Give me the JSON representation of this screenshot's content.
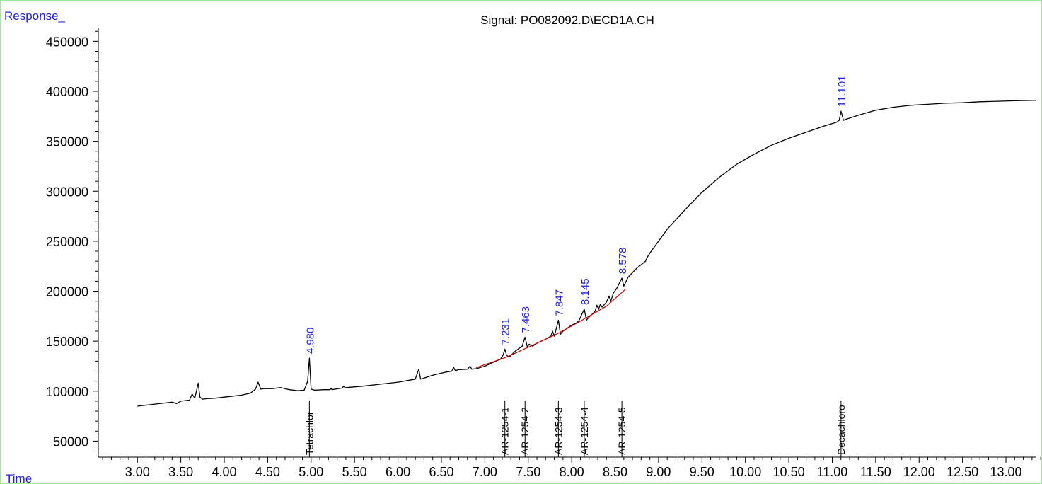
{
  "chart_data": {
    "type": "line",
    "title": "Signal: PO082092.D\\ECD1A.CH",
    "ylabel": "Response_",
    "xlabel": "Time",
    "xlim": [
      2.55,
      13.35
    ],
    "ylim": [
      34000,
      463000
    ],
    "x_ticks": [
      "3.00",
      "3.50",
      "4.00",
      "4.50",
      "5.00",
      "5.50",
      "6.00",
      "6.50",
      "7.00",
      "7.50",
      "8.00",
      "8.50",
      "9.00",
      "9.50",
      "10.00",
      "10.50",
      "11.00",
      "11.50",
      "12.00",
      "12.50",
      "13.00"
    ],
    "y_ticks": [
      "50000",
      "100000",
      "150000",
      "200000",
      "250000",
      "300000",
      "350000",
      "400000",
      "450000"
    ],
    "series": [
      {
        "color": "#000000",
        "x": [
          3.0,
          3.2,
          3.4,
          3.45,
          3.5,
          3.6,
          3.63,
          3.66,
          3.68,
          3.7,
          3.72,
          3.75,
          3.8,
          3.9,
          4.0,
          4.1,
          4.2,
          4.3,
          4.36,
          4.39,
          4.42,
          4.46,
          4.55,
          4.65,
          4.75,
          4.85,
          4.92,
          4.96,
          4.98,
          5.0,
          5.04,
          5.15,
          5.22,
          5.23,
          5.24,
          5.35,
          5.38,
          5.39,
          5.4,
          5.6,
          5.8,
          6.0,
          6.2,
          6.24,
          6.26,
          6.28,
          6.4,
          6.55,
          6.62,
          6.64,
          6.66,
          6.7,
          6.8,
          6.83,
          6.85,
          6.9,
          7.0,
          7.1,
          7.18,
          7.21,
          7.231,
          7.25,
          7.28,
          7.35,
          7.43,
          7.463,
          7.49,
          7.51,
          7.55,
          7.6,
          7.7,
          7.76,
          7.78,
          7.8,
          7.847,
          7.87,
          7.9,
          8.0,
          8.05,
          8.08,
          8.145,
          8.17,
          8.2,
          8.27,
          8.29,
          8.31,
          8.33,
          8.35,
          8.4,
          8.43,
          8.45,
          8.48,
          8.52,
          8.578,
          8.6,
          8.65,
          8.75,
          8.85,
          8.87,
          8.9,
          9.0,
          9.1,
          9.3,
          9.5,
          9.7,
          9.9,
          10.1,
          10.3,
          10.5,
          10.7,
          10.9,
          11.05,
          11.08,
          11.101,
          11.13,
          11.16,
          11.3,
          11.5,
          11.7,
          11.9,
          12.1,
          12.3,
          12.5,
          12.7,
          12.9,
          13.1,
          13.35
        ],
        "y": [
          85000,
          87000,
          89000,
          87500,
          90000,
          91000,
          97000,
          93000,
          100000,
          108000,
          94000,
          92000,
          92500,
          93000,
          94000,
          95000,
          96000,
          98000,
          102000,
          109000,
          102000,
          102500,
          102500,
          103500,
          101500,
          100500,
          101000,
          110000,
          133000,
          102000,
          101000,
          101500,
          101500,
          103000,
          101500,
          103000,
          105000,
          103000,
          103500,
          105000,
          107000,
          109000,
          112000,
          122000,
          112000,
          112500,
          116000,
          119000,
          120000,
          124000,
          120500,
          121500,
          122000,
          125000,
          122000,
          122500,
          125000,
          129000,
          132000,
          136000,
          142000,
          136000,
          134000,
          140000,
          145000,
          154000,
          144000,
          147000,
          145000,
          148000,
          152000,
          155000,
          160000,
          155000,
          171000,
          157000,
          160000,
          166000,
          168000,
          170000,
          182000,
          171000,
          174000,
          180000,
          186000,
          182000,
          187000,
          184000,
          189000,
          195000,
          190000,
          198000,
          203000,
          213000,
          205000,
          214000,
          223000,
          230000,
          234000,
          238000,
          250000,
          262000,
          281000,
          299000,
          314000,
          327000,
          337000,
          346000,
          353000,
          359000,
          365000,
          369000,
          371000,
          380000,
          371000,
          372000,
          376000,
          381000,
          384000,
          386000,
          387000,
          388000,
          388500,
          389500,
          390000,
          390500,
          391000
        ]
      },
      {
        "color": "#cc0000",
        "x": [
          6.9,
          7.25,
          7.55,
          7.85,
          8.1,
          8.4,
          8.62
        ],
        "y": [
          123500,
          134000,
          146000,
          158000,
          170000,
          185000,
          202000
        ]
      }
    ],
    "markers": [
      {
        "x": 4.98,
        "label": "Tetrachlor"
      },
      {
        "x": 7.231,
        "label": "AR-1254-1"
      },
      {
        "x": 7.463,
        "label": "AR-1254-2"
      },
      {
        "x": 7.847,
        "label": "AR-1254-3"
      },
      {
        "x": 8.145,
        "label": "AR-1254-4"
      },
      {
        "x": 8.578,
        "label": "AR-1254-5"
      },
      {
        "x": 11.101,
        "label": "Decachloro"
      }
    ],
    "peak_labels": [
      {
        "x": 4.98,
        "y": 133000,
        "label": "4.980"
      },
      {
        "x": 7.231,
        "y": 142000,
        "label": "7.231"
      },
      {
        "x": 7.463,
        "y": 154000,
        "label": "7.463"
      },
      {
        "x": 7.847,
        "y": 171000,
        "label": "7.847"
      },
      {
        "x": 8.145,
        "y": 182000,
        "label": "8.145"
      },
      {
        "x": 8.578,
        "y": 213000,
        "label": "8.578"
      },
      {
        "x": 11.101,
        "y": 380000,
        "label": "11.101"
      }
    ],
    "colors": {
      "text": "#000000",
      "label": "#1f1fe0",
      "frame": "#9be89b",
      "baseline": "#cc0000"
    }
  }
}
